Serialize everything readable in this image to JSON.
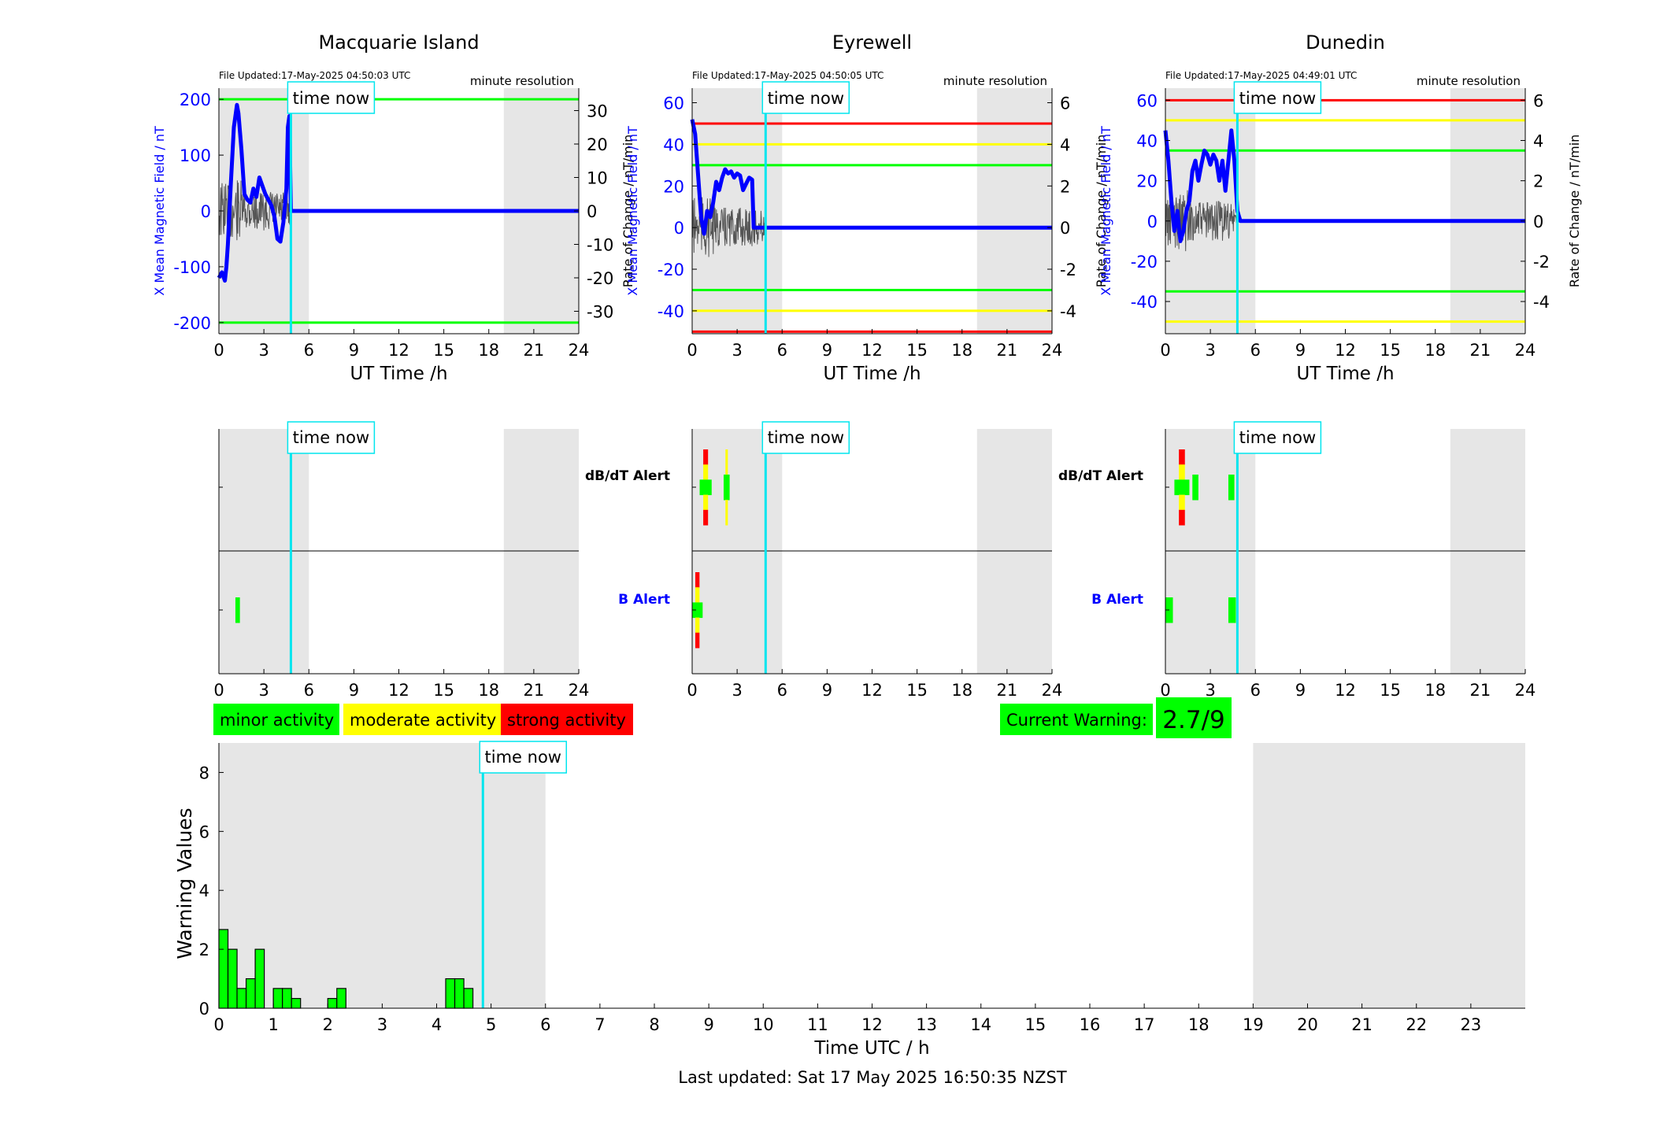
{
  "colors": {
    "blue": "#0000ff",
    "cyan": "#00e5ee",
    "green": "#00ff00",
    "yellow": "#ffff00",
    "red": "#ff0000",
    "shade": "#e6e6e6",
    "grey_trace": "#555555"
  },
  "labels": {
    "time_now": "time now",
    "ut_xlabel": "UT Time /h",
    "y_left": "X Mean Magnetic Field / nT",
    "y_right": "Rate of Change / nT/min",
    "resolution": "minute resolution",
    "dbdt_alert": "dB/dT Alert",
    "b_alert": "B Alert"
  },
  "legend": [
    "minor activity",
    "moderate activity",
    "strong activity"
  ],
  "current_warning": {
    "label": "Current Warning:",
    "value": "2.7/9"
  },
  "footer": "Last updated: Sat 17 May 2025 16:50:35 NZST",
  "stations": [
    {
      "name": "Macquarie Island",
      "file_updated": "File Updated:17-May-2025 04:50:03 UTC",
      "time_now": 4.8,
      "shade": [
        [
          0,
          6
        ],
        [
          19,
          24
        ]
      ],
      "ylim": [
        -220,
        220
      ],
      "yticks": [
        "200",
        "100",
        "0",
        "-100",
        "-200"
      ],
      "ylim_right": [
        -36.7,
        36.7
      ],
      "yticks_right": [
        "30",
        "20",
        "10",
        "0",
        "-10",
        "-20",
        "-30"
      ],
      "thresholds": [
        {
          "value": 200,
          "color": "green"
        },
        {
          "value": -200,
          "color": "green"
        }
      ],
      "x_series": {
        "t": [
          0,
          0.2,
          0.4,
          0.5,
          0.6,
          0.8,
          1.0,
          1.2,
          1.3,
          1.5,
          1.7,
          1.9,
          2.1,
          2.3,
          2.5,
          2.7,
          2.9,
          3.1,
          3.3,
          3.5,
          3.7,
          3.9,
          4.1,
          4.3,
          4.5,
          4.6,
          4.7,
          4.8,
          24
        ],
        "v": [
          -120,
          -110,
          -125,
          -100,
          -60,
          50,
          150,
          190,
          175,
          110,
          30,
          20,
          15,
          40,
          25,
          60,
          45,
          30,
          20,
          10,
          -10,
          -50,
          -55,
          -20,
          40,
          150,
          170,
          0,
          0
        ]
      },
      "dbdt_segments": [],
      "b_segments": [
        {
          "t0": 1.1,
          "t1": 1.4,
          "levels": [
            "green"
          ]
        }
      ]
    },
    {
      "name": "Eyrewell",
      "file_updated": "File Updated:17-May-2025 04:50:05 UTC",
      "time_now": 4.9,
      "shade": [
        [
          0,
          6
        ],
        [
          19,
          24
        ]
      ],
      "ylim": [
        -51,
        67
      ],
      "yticks": [
        "60",
        "40",
        "20",
        "0",
        "-20",
        "-40"
      ],
      "ylim_right": [
        -5.1,
        6.7
      ],
      "yticks_right": [
        "6",
        "4",
        "2",
        "0",
        "-2",
        "-4"
      ],
      "thresholds": [
        {
          "value": 50,
          "color": "red"
        },
        {
          "value": 40,
          "color": "yellow"
        },
        {
          "value": 30,
          "color": "green"
        },
        {
          "value": -30,
          "color": "green"
        },
        {
          "value": -40,
          "color": "yellow"
        },
        {
          "value": -50,
          "color": "red"
        }
      ],
      "x_series": {
        "t": [
          0,
          0.2,
          0.4,
          0.6,
          0.8,
          1.0,
          1.2,
          1.4,
          1.6,
          1.8,
          2.0,
          2.2,
          2.4,
          2.6,
          2.8,
          3.0,
          3.2,
          3.4,
          3.6,
          3.8,
          4.0,
          4.1,
          4.2,
          24
        ],
        "v": [
          52,
          45,
          25,
          5,
          -3,
          8,
          5,
          12,
          22,
          18,
          24,
          28,
          26,
          27,
          24,
          26,
          25,
          18,
          21,
          24,
          23,
          0,
          0,
          0
        ]
      },
      "dbdt_segments": [
        {
          "t0": 0.5,
          "t1": 1.3,
          "levels": [
            "red",
            "yellow",
            "green",
            "yellow",
            "red"
          ]
        },
        {
          "t0": 2.1,
          "t1": 2.5,
          "levels": [
            "yellow",
            "green",
            "yellow"
          ]
        }
      ],
      "b_segments": [
        {
          "t0": 0,
          "t1": 0.7,
          "levels": [
            "red",
            "yellow",
            "green",
            "yellow",
            "red"
          ]
        }
      ]
    },
    {
      "name": "Dunedin",
      "file_updated": "File Updated:17-May-2025 04:49:01 UTC",
      "time_now": 4.8,
      "shade": [
        [
          0,
          6
        ],
        [
          19,
          24
        ]
      ],
      "ylim": [
        -56,
        66
      ],
      "yticks": [
        "60",
        "40",
        "20",
        "0",
        "-20",
        "-40"
      ],
      "ylim_right": [
        -5.6,
        6.6
      ],
      "yticks_right": [
        "6",
        "4",
        "2",
        "0",
        "-2",
        "-4"
      ],
      "thresholds": [
        {
          "value": 60,
          "color": "red"
        },
        {
          "value": 50,
          "color": "yellow"
        },
        {
          "value": 35,
          "color": "green"
        },
        {
          "value": -35,
          "color": "green"
        },
        {
          "value": -50,
          "color": "yellow"
        }
      ],
      "x_series": {
        "t": [
          0,
          0.2,
          0.4,
          0.6,
          0.8,
          1.0,
          1.2,
          1.4,
          1.6,
          1.8,
          2.0,
          2.2,
          2.4,
          2.6,
          2.8,
          3.0,
          3.2,
          3.4,
          3.6,
          3.8,
          4.0,
          4.2,
          4.4,
          4.6,
          4.8,
          5.0,
          24
        ],
        "v": [
          45,
          30,
          10,
          -5,
          5,
          -10,
          -5,
          5,
          10,
          25,
          30,
          20,
          28,
          35,
          33,
          28,
          33,
          30,
          20,
          30,
          15,
          30,
          45,
          30,
          5,
          0,
          0
        ]
      },
      "dbdt_segments": [
        {
          "t0": 0.6,
          "t1": 1.6,
          "levels": [
            "red",
            "yellow",
            "green",
            "yellow",
            "red"
          ]
        },
        {
          "t0": 1.8,
          "t1": 2.2,
          "levels": [
            "green"
          ]
        },
        {
          "t0": 4.2,
          "t1": 4.6,
          "levels": [
            "green"
          ]
        }
      ],
      "b_segments": [
        {
          "t0": 0,
          "t1": 0.5,
          "levels": [
            "green"
          ]
        },
        {
          "t0": 4.2,
          "t1": 4.7,
          "levels": [
            "green"
          ]
        }
      ]
    }
  ],
  "chart_data": {
    "type": "bar",
    "ylabel": "Warning Values",
    "xlabel": "Time UTC / h",
    "ylim": [
      0,
      9
    ],
    "yticks": [
      "0",
      "2",
      "4",
      "6",
      "8"
    ],
    "xlim": [
      0,
      24
    ],
    "xticks": [
      "0",
      "1",
      "2",
      "3",
      "4",
      "5",
      "6",
      "7",
      "8",
      "9",
      "10",
      "11",
      "12",
      "13",
      "14",
      "15",
      "16",
      "17",
      "18",
      "19",
      "20",
      "21",
      "22",
      "23"
    ],
    "shade": [
      [
        0,
        6
      ],
      [
        19,
        24
      ]
    ],
    "time_now": 4.85,
    "bin_width": 0.1667,
    "bars": [
      {
        "t": 0.0,
        "v": 2.67
      },
      {
        "t": 0.1667,
        "v": 2.0
      },
      {
        "t": 0.3333,
        "v": 0.67
      },
      {
        "t": 0.5,
        "v": 1.0
      },
      {
        "t": 0.6667,
        "v": 2.0
      },
      {
        "t": 1.0,
        "v": 0.67
      },
      {
        "t": 1.1667,
        "v": 0.67
      },
      {
        "t": 1.3333,
        "v": 0.33
      },
      {
        "t": 2.0,
        "v": 0.33
      },
      {
        "t": 2.1667,
        "v": 0.67
      },
      {
        "t": 4.1667,
        "v": 1.0
      },
      {
        "t": 4.3333,
        "v": 1.0
      },
      {
        "t": 4.5,
        "v": 0.67
      }
    ]
  }
}
